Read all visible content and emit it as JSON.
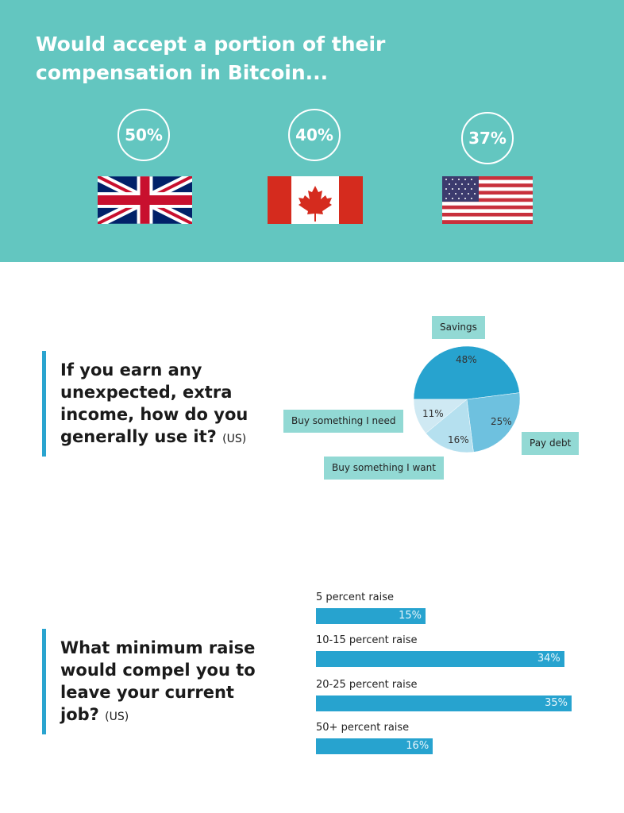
{
  "header": {
    "title": "Would accept a portion of their compensation in Bitcoin...",
    "countries": [
      {
        "flag": "uk-flag",
        "value": "50%"
      },
      {
        "flag": "canada-flag",
        "value": "40%"
      },
      {
        "flag": "us-flag",
        "value": "37%"
      }
    ],
    "background": "#63c6c0"
  },
  "q1": {
    "question": "If you earn any unexpected, extra income, how do you generally use it?",
    "suffix": "(US)"
  },
  "q2": {
    "question": "What minimum raise would compel you to leave your current job?",
    "suffix": "(US)"
  },
  "chart_data": [
    {
      "type": "pie",
      "categories": [
        "Savings",
        "Pay debt",
        "Buy something I want",
        "Buy something I need"
      ],
      "values": [
        48,
        25,
        16,
        11
      ],
      "labels": [
        "48%",
        "25%",
        "16%",
        "11%"
      ],
      "colors": [
        "#27a3cf",
        "#6ec1df",
        "#b5e0ef",
        "#cfe9f3"
      ]
    },
    {
      "type": "bar",
      "orientation": "horizontal",
      "categories": [
        "5 percent raise",
        "10-15 percent raise",
        "20-25 percent raise",
        "50+ percent raise"
      ],
      "values": [
        15,
        34,
        35,
        16
      ],
      "labels": [
        "15%",
        "34%",
        "35%",
        "16%"
      ],
      "color": "#27a3cf"
    }
  ]
}
